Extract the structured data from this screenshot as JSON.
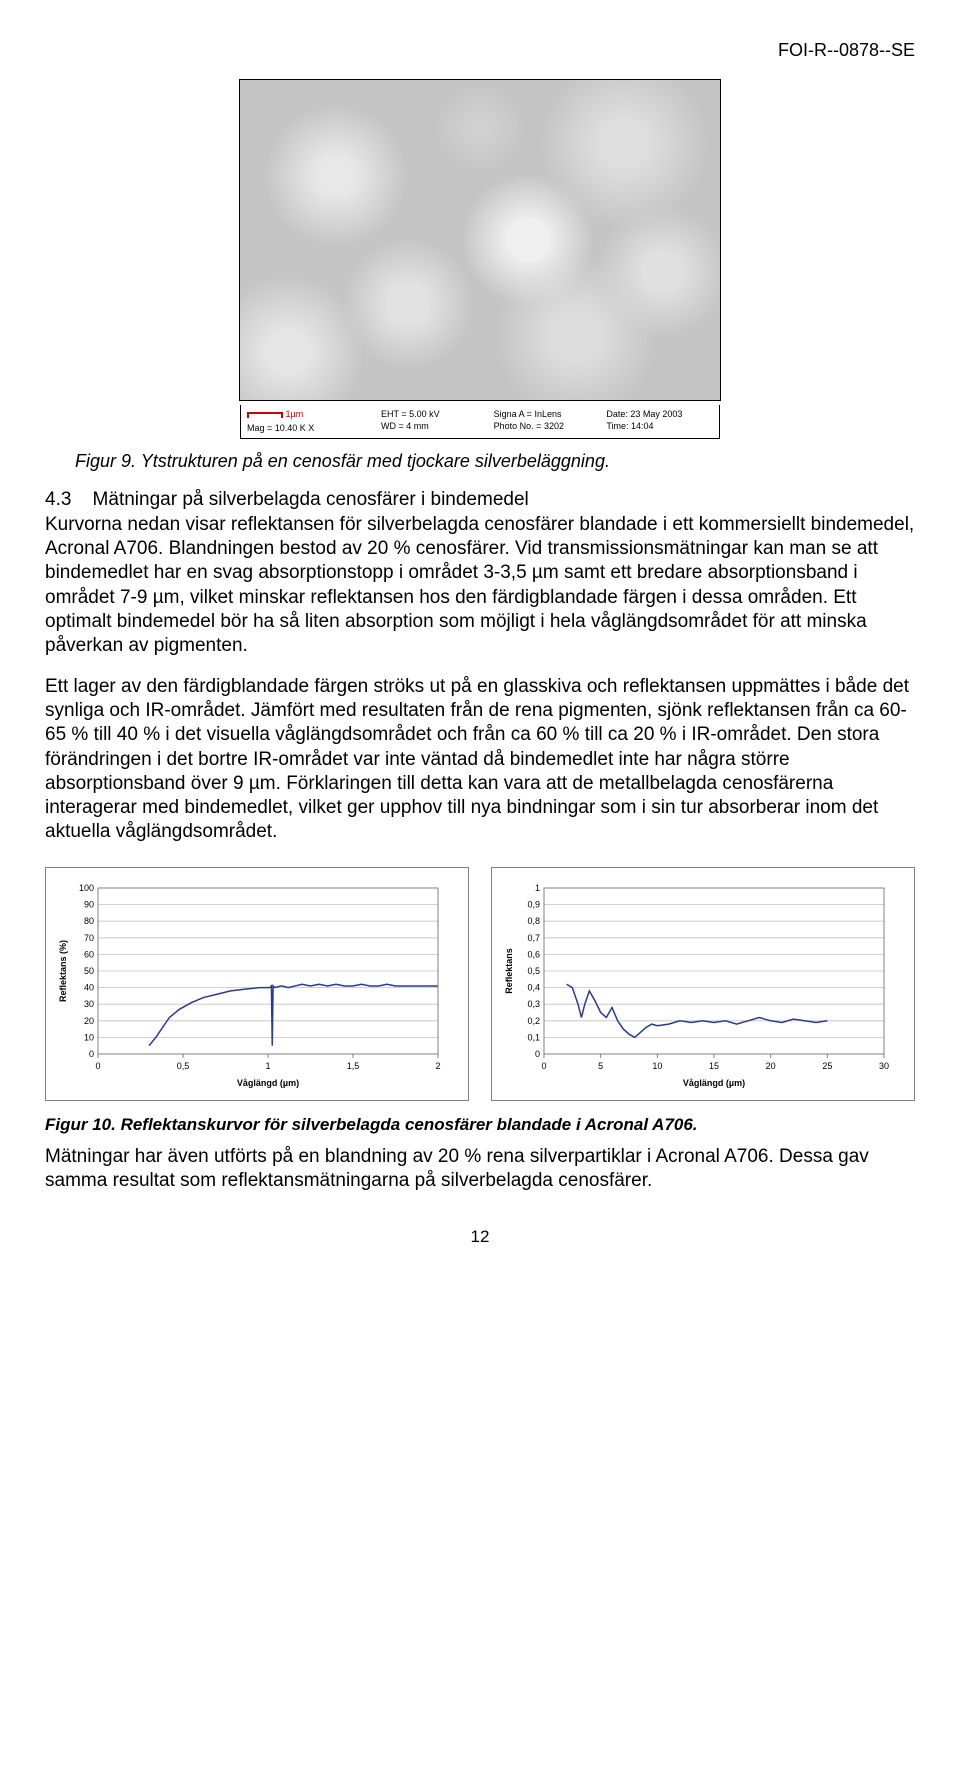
{
  "doc_id": "FOI-R--0878--SE",
  "sem": {
    "scale_label": "1µm",
    "mag": "Mag = 10.40 K X",
    "eht": "EHT = 5.00 kV",
    "wd": "WD = 4 mm",
    "signal": "Signa A = InLens",
    "photo": "Photo No. = 3202",
    "date": "Date: 23 May 2003",
    "time": "Time: 14:04"
  },
  "fig9_caption": "Figur 9. Ytstrukturen på en cenosfär med tjockare silverbeläggning.",
  "section": {
    "num": "4.3",
    "title": "Mätningar på silverbelagda cenosfärer i bindemedel"
  },
  "p1": "Kurvorna nedan visar reflektansen för silverbelagda cenosfärer blandade i ett kommersiellt bindemedel, Acronal A706. Blandningen bestod av 20 % cenosfärer. Vid transmissionsmätningar kan man se att bindemedlet har en svag absorptionstopp i området 3-3,5 µm samt ett bredare absorptionsband i området 7-9 µm, vilket minskar reflektansen hos den färdigblandade färgen i dessa områden. Ett optimalt bindemedel bör ha så liten absorption som möjligt i hela våglängdsområdet för att minska påverkan av pigmenten.",
  "p2": "Ett lager av den färdigblandade färgen ströks ut på en glasskiva och reflektansen uppmättes i både det synliga och IR-området. Jämfört med resultaten från de rena pigmenten, sjönk reflektansen från ca 60-65 % till 40 % i det visuella våglängdsområdet och från ca 60 % till ca 20 % i IR-området. Den stora förändringen i det bortre IR-området var inte väntad då bindemedlet inte har några större absorptionsband över 9 µm. Förklaringen till detta kan vara att de metallbelagda cenosfärerna interagerar med bindemedlet, vilket ger upphov till nya bindningar som i sin tur absorberar inom det aktuella våglängdsområdet.",
  "chart_left": {
    "type": "line",
    "ylabel": "Reflektans (%)",
    "xlabel": "Våglängd (µm)",
    "xlim": [
      0,
      2
    ],
    "ylim": [
      0,
      100
    ],
    "xticks": [
      0,
      0.5,
      1,
      1.5,
      2
    ],
    "xtick_labels": [
      "0",
      "0,5",
      "1",
      "1,5",
      "2"
    ],
    "yticks": [
      0,
      10,
      20,
      30,
      40,
      50,
      60,
      70,
      80,
      90,
      100
    ],
    "grid_color": "#c0c0c0",
    "line_color": "#2a3b8f",
    "line_width": 1.5,
    "background_color": "#ffffff",
    "tick_fontsize": 9,
    "label_fontsize": 9,
    "data": [
      [
        0.3,
        5
      ],
      [
        0.34,
        10
      ],
      [
        0.38,
        16
      ],
      [
        0.42,
        22
      ],
      [
        0.48,
        27
      ],
      [
        0.55,
        31
      ],
      [
        0.62,
        34
      ],
      [
        0.7,
        36
      ],
      [
        0.78,
        38
      ],
      [
        0.86,
        39
      ],
      [
        0.95,
        40
      ],
      [
        1.0,
        40
      ],
      [
        1.01,
        40
      ],
      [
        1.02,
        41
      ],
      [
        1.025,
        5
      ],
      [
        1.03,
        41
      ],
      [
        1.04,
        40
      ],
      [
        1.08,
        41
      ],
      [
        1.12,
        40
      ],
      [
        1.16,
        41
      ],
      [
        1.2,
        42
      ],
      [
        1.25,
        41
      ],
      [
        1.3,
        42
      ],
      [
        1.35,
        41
      ],
      [
        1.4,
        42
      ],
      [
        1.45,
        41
      ],
      [
        1.5,
        41
      ],
      [
        1.55,
        42
      ],
      [
        1.6,
        41
      ],
      [
        1.65,
        41
      ],
      [
        1.7,
        42
      ],
      [
        1.75,
        41
      ],
      [
        1.8,
        41
      ],
      [
        1.85,
        41
      ],
      [
        1.9,
        41
      ],
      [
        1.95,
        41
      ],
      [
        2.0,
        41
      ]
    ]
  },
  "chart_right": {
    "type": "line",
    "ylabel": "Reflektans",
    "xlabel": "Våglängd (µm)",
    "xlim": [
      0,
      30
    ],
    "ylim": [
      0,
      1
    ],
    "xticks": [
      0,
      5,
      10,
      15,
      20,
      25,
      30
    ],
    "xtick_labels": [
      "0",
      "5",
      "10",
      "15",
      "20",
      "25",
      "30"
    ],
    "yticks": [
      0,
      0.1,
      0.2,
      0.3,
      0.4,
      0.5,
      0.6,
      0.7,
      0.8,
      0.9,
      1
    ],
    "ytick_labels": [
      "0",
      "0,1",
      "0,2",
      "0,3",
      "0,4",
      "0,5",
      "0,6",
      "0,7",
      "0,8",
      "0,9",
      "1"
    ],
    "grid_color": "#c0c0c0",
    "line_color": "#2a3b8f",
    "line_width": 1.5,
    "background_color": "#ffffff",
    "tick_fontsize": 9,
    "label_fontsize": 9,
    "data": [
      [
        2.0,
        0.42
      ],
      [
        2.5,
        0.4
      ],
      [
        3.0,
        0.3
      ],
      [
        3.3,
        0.22
      ],
      [
        3.6,
        0.3
      ],
      [
        4.0,
        0.38
      ],
      [
        4.5,
        0.32
      ],
      [
        5.0,
        0.25
      ],
      [
        5.5,
        0.22
      ],
      [
        6.0,
        0.28
      ],
      [
        6.5,
        0.2
      ],
      [
        7.0,
        0.15
      ],
      [
        7.5,
        0.12
      ],
      [
        8.0,
        0.1
      ],
      [
        8.5,
        0.13
      ],
      [
        9.0,
        0.16
      ],
      [
        9.5,
        0.18
      ],
      [
        10.0,
        0.17
      ],
      [
        11.0,
        0.18
      ],
      [
        12.0,
        0.2
      ],
      [
        13.0,
        0.19
      ],
      [
        14.0,
        0.2
      ],
      [
        15.0,
        0.19
      ],
      [
        16.0,
        0.2
      ],
      [
        17.0,
        0.18
      ],
      [
        18.0,
        0.2
      ],
      [
        19.0,
        0.22
      ],
      [
        20.0,
        0.2
      ],
      [
        21.0,
        0.19
      ],
      [
        22.0,
        0.21
      ],
      [
        23.0,
        0.2
      ],
      [
        24.0,
        0.19
      ],
      [
        25.0,
        0.2
      ]
    ]
  },
  "fig10_caption": "Figur 10. Reflektanskurvor för silverbelagda cenosfärer blandade i Acronal A706.",
  "p3": "Mätningar har även utförts på en blandning av 20 % rena silverpartiklar i Acronal A706. Dessa gav samma resultat som reflektansmätningarna på silverbelagda cenosfärer.",
  "page_number": "12"
}
